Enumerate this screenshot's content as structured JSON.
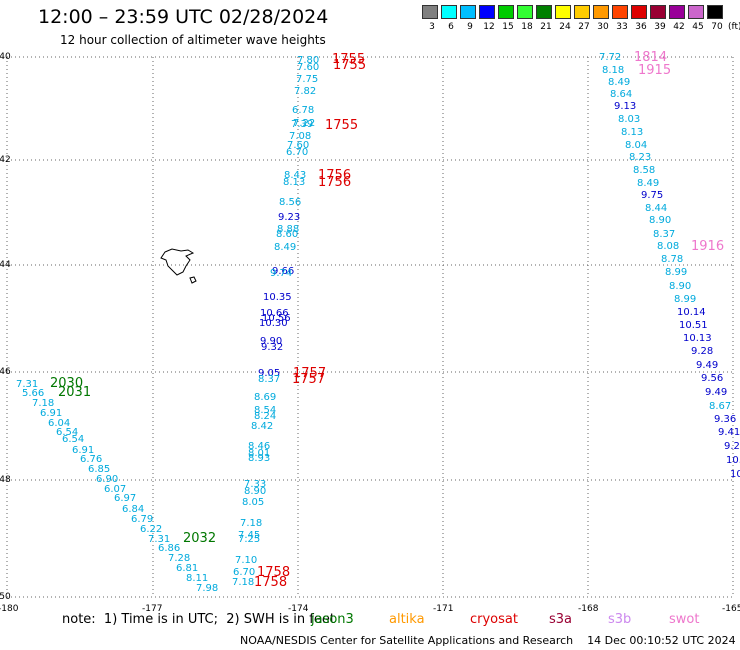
{
  "header": {
    "title": "12:00 – 23:59 UTC 02/28/2024",
    "subtitle": "12 hour collection of altimeter wave heights"
  },
  "colorbar": {
    "swatches": [
      {
        "value": "3",
        "color": "#808080"
      },
      {
        "value": "6",
        "color": "#00ffff"
      },
      {
        "value": "9",
        "color": "#00bfff"
      },
      {
        "value": "12",
        "color": "#0000ff"
      },
      {
        "value": "15",
        "color": "#00cc00"
      },
      {
        "value": "18",
        "color": "#33ff33"
      },
      {
        "value": "21",
        "color": "#008000"
      },
      {
        "value": "24",
        "color": "#ffff00"
      },
      {
        "value": "27",
        "color": "#ffcc00"
      },
      {
        "value": "30",
        "color": "#ff9900"
      },
      {
        "value": "33",
        "color": "#ff4400"
      },
      {
        "value": "36",
        "color": "#dd0000"
      },
      {
        "value": "39",
        "color": "#990033"
      },
      {
        "value": "42",
        "color": "#990099"
      },
      {
        "value": "45",
        "color": "#cc66cc"
      },
      {
        "value": "70",
        "color": "#000000"
      }
    ],
    "unit": "(ft)"
  },
  "axes": {
    "lon_ticks": [
      "-180",
      "-177",
      "-174",
      "-171",
      "-168",
      "-165"
    ],
    "lat_ticks": [
      "-40",
      "-42",
      "-44",
      "-46",
      "-48",
      "-50"
    ]
  },
  "colors": {
    "cyan": "#00aadd",
    "blue": "#0000cc",
    "green": "#007700",
    "red": "#dd0000",
    "pink": "#ee77cc"
  },
  "passes": [
    {
      "text": "1755",
      "color": "red"
    },
    {
      "text": "1755",
      "color": "red"
    },
    {
      "text": "1755",
      "color": "red"
    },
    {
      "text": "1756",
      "color": "red"
    },
    {
      "text": "1756",
      "color": "red"
    },
    {
      "text": "1757",
      "color": "red"
    },
    {
      "text": "1757",
      "color": "red"
    },
    {
      "text": "1758",
      "color": "red"
    },
    {
      "text": "1758",
      "color": "red"
    },
    {
      "text": "2030",
      "color": "green"
    },
    {
      "text": "2031",
      "color": "green"
    },
    {
      "text": "2032",
      "color": "green"
    },
    {
      "text": "1814",
      "color": "pink"
    },
    {
      "text": "1915",
      "color": "pink"
    },
    {
      "text": "1916",
      "color": "pink"
    }
  ],
  "track_center": [
    {
      "v": "7.80",
      "c": "cyan"
    },
    {
      "v": "7.60",
      "c": "cyan"
    },
    {
      "v": "7.75",
      "c": "cyan"
    },
    {
      "v": "7.82",
      "c": "cyan"
    },
    {
      "v": "6.78",
      "c": "cyan"
    },
    {
      "v": "7.39",
      "c": "cyan"
    },
    {
      "v": "7.22",
      "c": "cyan"
    },
    {
      "v": "7.08",
      "c": "cyan"
    },
    {
      "v": "7.60",
      "c": "cyan"
    },
    {
      "v": "6.70",
      "c": "cyan"
    },
    {
      "v": "8.43",
      "c": "cyan"
    },
    {
      "v": "8.13",
      "c": "cyan"
    },
    {
      "v": "8.56",
      "c": "cyan"
    },
    {
      "v": "9.23",
      "c": "blue"
    },
    {
      "v": "8.88",
      "c": "cyan"
    },
    {
      "v": "8.60",
      "c": "cyan"
    },
    {
      "v": "8.49",
      "c": "cyan"
    },
    {
      "v": "9.66",
      "c": "blue"
    },
    {
      "v": "9.74",
      "c": "cyan"
    },
    {
      "v": "10.35",
      "c": "blue"
    },
    {
      "v": "10.66",
      "c": "blue"
    },
    {
      "v": "10.56",
      "c": "blue"
    },
    {
      "v": "10.30",
      "c": "blue"
    },
    {
      "v": "9.90",
      "c": "blue"
    },
    {
      "v": "9.32",
      "c": "blue"
    },
    {
      "v": "9.05",
      "c": "blue"
    },
    {
      "v": "8.37",
      "c": "cyan"
    },
    {
      "v": "8.69",
      "c": "cyan"
    },
    {
      "v": "8.54",
      "c": "cyan"
    },
    {
      "v": "8.24",
      "c": "cyan"
    },
    {
      "v": "8.42",
      "c": "cyan"
    },
    {
      "v": "8.46",
      "c": "cyan"
    },
    {
      "v": "8.01",
      "c": "cyan"
    },
    {
      "v": "8.93",
      "c": "cyan"
    },
    {
      "v": "7.33",
      "c": "cyan"
    },
    {
      "v": "8.90",
      "c": "cyan"
    },
    {
      "v": "8.05",
      "c": "cyan"
    },
    {
      "v": "7.18",
      "c": "cyan"
    },
    {
      "v": "7.45",
      "c": "cyan"
    },
    {
      "v": "7.25",
      "c": "cyan"
    },
    {
      "v": "7.10",
      "c": "cyan"
    },
    {
      "v": "6.70",
      "c": "cyan"
    },
    {
      "v": "7.18",
      "c": "cyan"
    }
  ],
  "track_left": [
    {
      "v": "7.31",
      "c": "cyan"
    },
    {
      "v": "5.66",
      "c": "cyan"
    },
    {
      "v": "7.18",
      "c": "cyan"
    },
    {
      "v": "6.91",
      "c": "cyan"
    },
    {
      "v": "6.04",
      "c": "cyan"
    },
    {
      "v": "6.54",
      "c": "cyan"
    },
    {
      "v": "6.54",
      "c": "cyan"
    },
    {
      "v": "6.91",
      "c": "cyan"
    },
    {
      "v": "6.76",
      "c": "cyan"
    },
    {
      "v": "6.85",
      "c": "cyan"
    },
    {
      "v": "6.90",
      "c": "cyan"
    },
    {
      "v": "6.07",
      "c": "cyan"
    },
    {
      "v": "6.97",
      "c": "cyan"
    },
    {
      "v": "6.84",
      "c": "cyan"
    },
    {
      "v": "6.79",
      "c": "cyan"
    },
    {
      "v": "6.22",
      "c": "cyan"
    },
    {
      "v": "7.31",
      "c": "cyan"
    },
    {
      "v": "6.86",
      "c": "cyan"
    },
    {
      "v": "7.28",
      "c": "cyan"
    },
    {
      "v": "6.81",
      "c": "cyan"
    },
    {
      "v": "8.11",
      "c": "cyan"
    },
    {
      "v": "7.98",
      "c": "cyan"
    }
  ],
  "track_right": [
    {
      "v": "7.72",
      "c": "cyan"
    },
    {
      "v": "8.18",
      "c": "cyan"
    },
    {
      "v": "8.49",
      "c": "cyan"
    },
    {
      "v": "8.64",
      "c": "cyan"
    },
    {
      "v": "9.13",
      "c": "blue"
    },
    {
      "v": "8.03",
      "c": "cyan"
    },
    {
      "v": "8.13",
      "c": "cyan"
    },
    {
      "v": "8.04",
      "c": "cyan"
    },
    {
      "v": "8.23",
      "c": "cyan"
    },
    {
      "v": "8.58",
      "c": "cyan"
    },
    {
      "v": "8.49",
      "c": "cyan"
    },
    {
      "v": "9.75",
      "c": "blue"
    },
    {
      "v": "8.44",
      "c": "cyan"
    },
    {
      "v": "8.90",
      "c": "cyan"
    },
    {
      "v": "8.37",
      "c": "cyan"
    },
    {
      "v": "8.08",
      "c": "cyan"
    },
    {
      "v": "8.78",
      "c": "cyan"
    },
    {
      "v": "8.99",
      "c": "cyan"
    },
    {
      "v": "8.90",
      "c": "cyan"
    },
    {
      "v": "8.99",
      "c": "cyan"
    },
    {
      "v": "10.14",
      "c": "blue"
    },
    {
      "v": "10.51",
      "c": "blue"
    },
    {
      "v": "10.13",
      "c": "blue"
    },
    {
      "v": "9.28",
      "c": "blue"
    },
    {
      "v": "9.49",
      "c": "blue"
    },
    {
      "v": "9.56",
      "c": "blue"
    },
    {
      "v": "9.49",
      "c": "blue"
    },
    {
      "v": "8.67",
      "c": "cyan"
    },
    {
      "v": "9.36",
      "c": "blue"
    },
    {
      "v": "9.41",
      "c": "blue"
    },
    {
      "v": "9.2",
      "c": "blue"
    },
    {
      "v": "10.",
      "c": "blue"
    },
    {
      "v": "10",
      "c": "blue"
    }
  ],
  "footer": {
    "note": "note:  1) Time is in UTC;  2) SWH is in feet",
    "satellites": [
      {
        "name": "jason3",
        "color": "#007700"
      },
      {
        "name": "altika",
        "color": "#ff9900"
      },
      {
        "name": "cryosat",
        "color": "#dd0000"
      },
      {
        "name": "s3a",
        "color": "#990033"
      },
      {
        "name": "s3b",
        "color": "#cc88ee"
      },
      {
        "name": "swot",
        "color": "#ee77cc"
      }
    ],
    "credit": "NOAA/NESDIS Center for Satellite Applications and Research    14 Dec 00:10:52 UTC 2024"
  }
}
